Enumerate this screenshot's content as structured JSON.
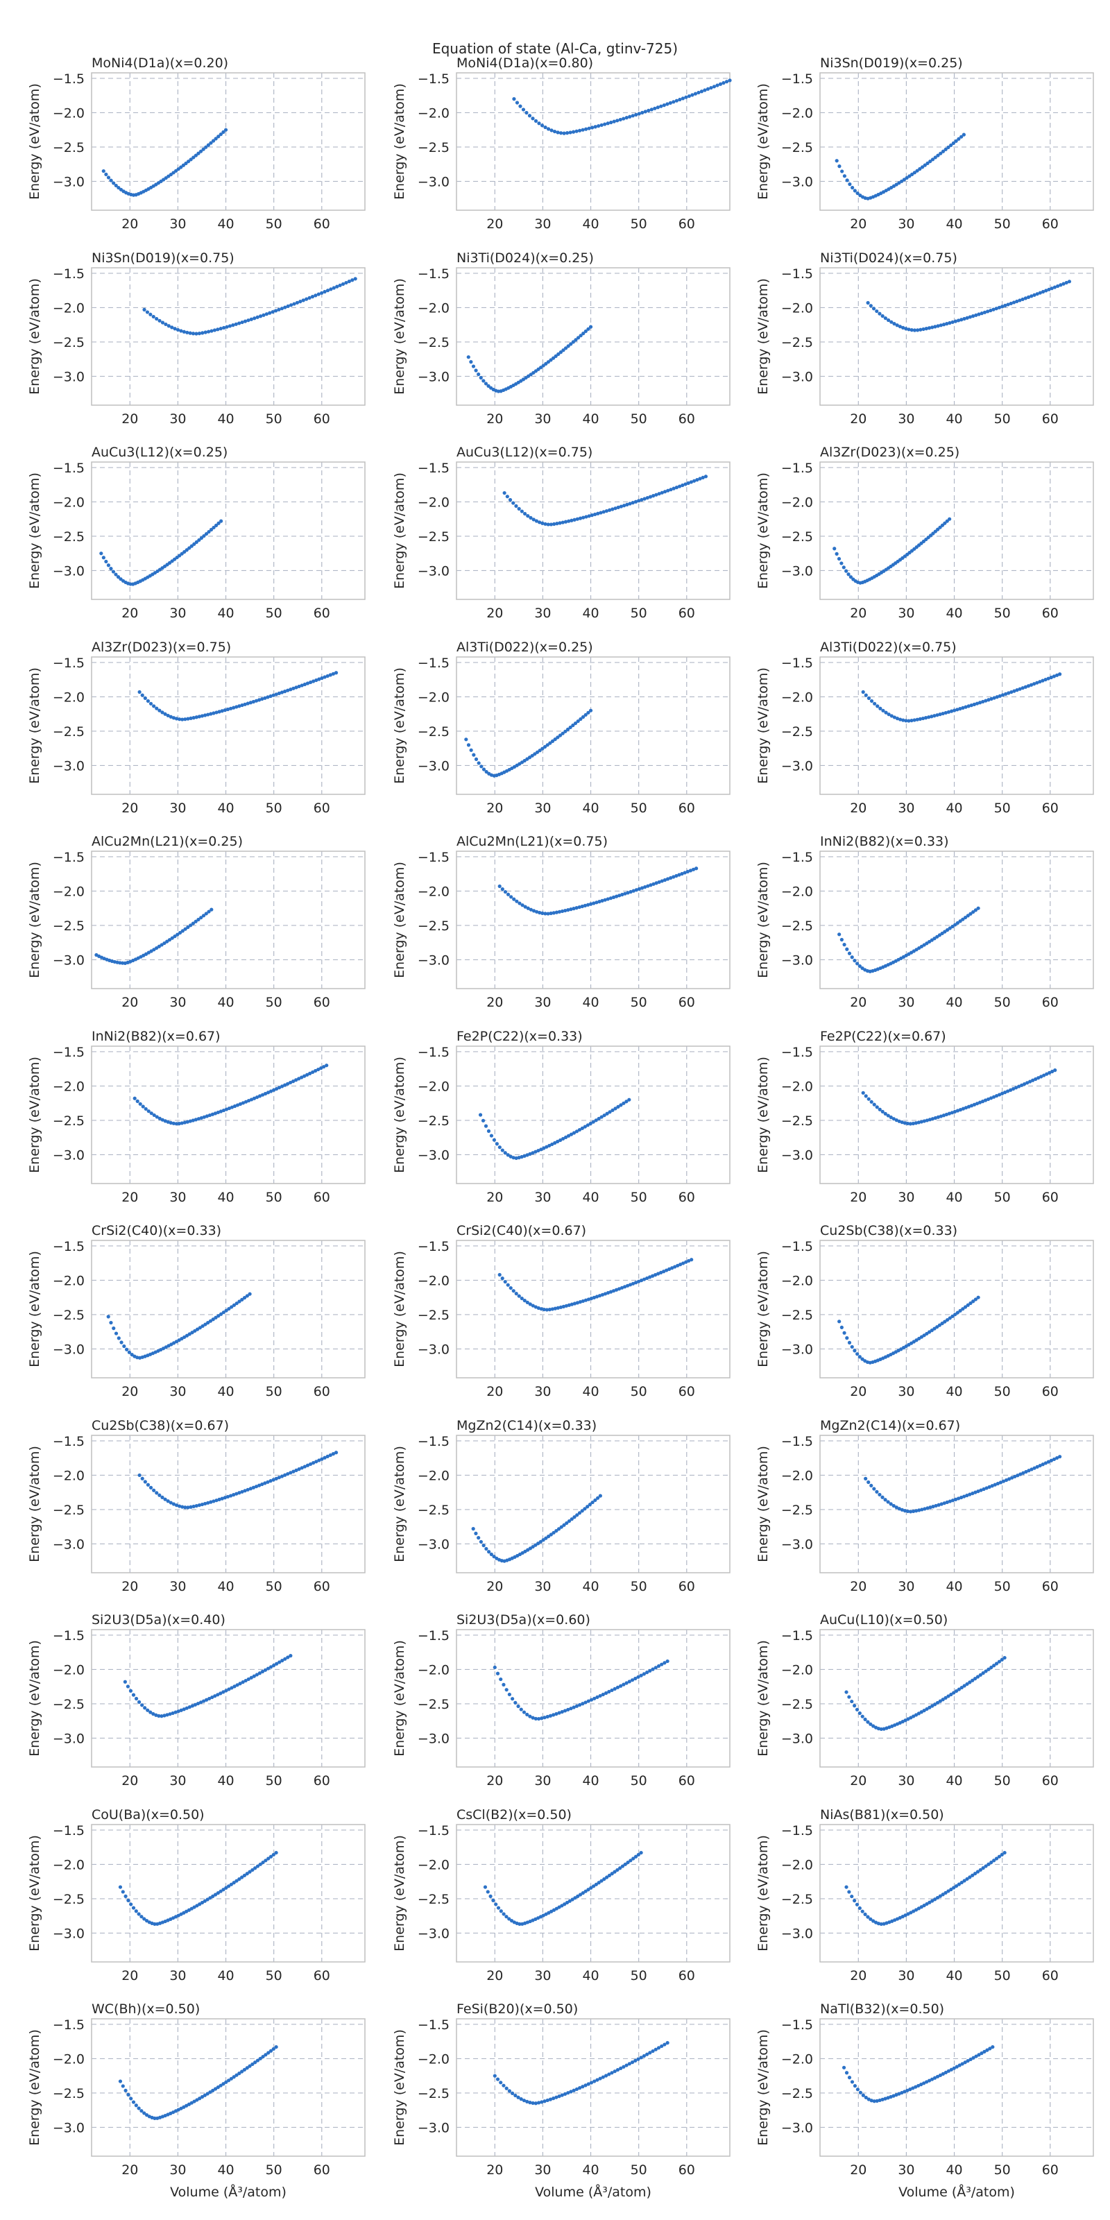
{
  "figure": {
    "suptitle": "Equation of state (Al-Ca, gtinv-725)",
    "xlabel": "Volume (Å³/atom)",
    "ylabel": "Energy (eV/atom)",
    "point_color": "#2c72c7",
    "grid_color": "#b0b7c6",
    "frame_color": "#bfbfbf"
  },
  "chart_data": {
    "type": "scatter",
    "xlim": [
      12,
      69
    ],
    "ylim": [
      -3.42,
      -1.42
    ],
    "xticks": [
      20,
      30,
      40,
      50,
      60
    ],
    "yticks": [
      -1.5,
      -2.0,
      -2.5,
      -3.0
    ],
    "grid": true,
    "panels": [
      {
        "title": "MoNi4(D1a)(x=0.20)",
        "v": [
          14.5,
          21.0,
          40.0
        ],
        "e": [
          -2.85,
          -3.2,
          -2.25
        ],
        "n": 50
      },
      {
        "title": "MoNi4(D1a)(x=0.80)",
        "v": [
          24.0,
          34.5,
          69.0
        ],
        "e": [
          -1.8,
          -2.3,
          -1.53
        ],
        "n": 70
      },
      {
        "title": "Ni3Sn(D019)(x=0.25)",
        "v": [
          15.5,
          22.0,
          42.0
        ],
        "e": [
          -2.7,
          -3.25,
          -2.32
        ],
        "n": 50
      },
      {
        "title": "Ni3Sn(D019)(x=0.75)",
        "v": [
          23.0,
          34.0,
          67.0
        ],
        "e": [
          -2.03,
          -2.38,
          -1.58
        ],
        "n": 70
      },
      {
        "title": "Ni3Ti(D024)(x=0.25)",
        "v": [
          14.5,
          21.0,
          40.0
        ],
        "e": [
          -2.72,
          -3.22,
          -2.28
        ],
        "n": 50
      },
      {
        "title": "Ni3Ti(D024)(x=0.75)",
        "v": [
          22.0,
          32.0,
          64.0
        ],
        "e": [
          -1.93,
          -2.33,
          -1.62
        ],
        "n": 70
      },
      {
        "title": "AuCu3(L12)(x=0.25)",
        "v": [
          14.0,
          20.5,
          39.0
        ],
        "e": [
          -2.75,
          -3.2,
          -2.28
        ],
        "n": 50
      },
      {
        "title": "AuCu3(L12)(x=0.75)",
        "v": [
          22.0,
          31.5,
          64.0
        ],
        "e": [
          -1.87,
          -2.33,
          -1.63
        ],
        "n": 70
      },
      {
        "title": "Al3Zr(D023)(x=0.25)",
        "v": [
          15.0,
          20.5,
          39.0
        ],
        "e": [
          -2.68,
          -3.18,
          -2.25
        ],
        "n": 50
      },
      {
        "title": "Al3Zr(D023)(x=0.75)",
        "v": [
          22.0,
          31.0,
          63.0
        ],
        "e": [
          -1.93,
          -2.33,
          -1.65
        ],
        "n": 70
      },
      {
        "title": "Al3Ti(D022)(x=0.25)",
        "v": [
          14.0,
          20.0,
          40.0
        ],
        "e": [
          -2.62,
          -3.15,
          -2.2
        ],
        "n": 50
      },
      {
        "title": "Al3Ti(D022)(x=0.75)",
        "v": [
          21.0,
          30.5,
          62.0
        ],
        "e": [
          -1.93,
          -2.35,
          -1.67
        ],
        "n": 70
      },
      {
        "title": "AlCu2Mn(L21)(x=0.25)",
        "v": [
          13.0,
          19.0,
          37.0
        ],
        "e": [
          -2.93,
          -3.05,
          -2.27
        ],
        "n": 45
      },
      {
        "title": "AlCu2Mn(L21)(x=0.75)",
        "v": [
          21.0,
          31.0,
          62.0
        ],
        "e": [
          -1.93,
          -2.33,
          -1.67
        ],
        "n": 70
      },
      {
        "title": "InNi2(B82)(x=0.33)",
        "v": [
          16.0,
          22.5,
          45.0
        ],
        "e": [
          -2.63,
          -3.17,
          -2.25
        ],
        "n": 55
      },
      {
        "title": "InNi2(B82)(x=0.67)",
        "v": [
          21.0,
          30.0,
          61.0
        ],
        "e": [
          -2.18,
          -2.55,
          -1.7
        ],
        "n": 70
      },
      {
        "title": "Fe2P(C22)(x=0.33)",
        "v": [
          17.0,
          24.5,
          48.0
        ],
        "e": [
          -2.42,
          -3.05,
          -2.2
        ],
        "n": 55
      },
      {
        "title": "Fe2P(C22)(x=0.67)",
        "v": [
          21.0,
          31.0,
          61.0
        ],
        "e": [
          -2.1,
          -2.55,
          -1.77
        ],
        "n": 70
      },
      {
        "title": "CrSi2(C40)(x=0.33)",
        "v": [
          15.5,
          22.0,
          45.0
        ],
        "e": [
          -2.53,
          -3.13,
          -2.2
        ],
        "n": 55
      },
      {
        "title": "CrSi2(C40)(x=0.67)",
        "v": [
          21.0,
          31.0,
          61.0
        ],
        "e": [
          -1.92,
          -2.43,
          -1.7
        ],
        "n": 70
      },
      {
        "title": "Cu2Sb(C38)(x=0.33)",
        "v": [
          16.0,
          22.5,
          45.0
        ],
        "e": [
          -2.6,
          -3.2,
          -2.25
        ],
        "n": 55
      },
      {
        "title": "Cu2Sb(C38)(x=0.67)",
        "v": [
          22.0,
          32.0,
          63.0
        ],
        "e": [
          -2.0,
          -2.47,
          -1.67
        ],
        "n": 70
      },
      {
        "title": "MgZn2(C14)(x=0.33)",
        "v": [
          15.5,
          22.0,
          42.0
        ],
        "e": [
          -2.78,
          -3.25,
          -2.3
        ],
        "n": 50
      },
      {
        "title": "MgZn2(C14)(x=0.67)",
        "v": [
          21.5,
          31.0,
          62.0
        ],
        "e": [
          -2.05,
          -2.53,
          -1.73
        ],
        "n": 70
      },
      {
        "title": "Si2U3(D5a)(x=0.40)",
        "v": [
          19.0,
          26.5,
          53.5
        ],
        "e": [
          -2.18,
          -2.68,
          -1.8
        ],
        "n": 60
      },
      {
        "title": "Si2U3(D5a)(x=0.60)",
        "v": [
          20.0,
          29.0,
          56.0
        ],
        "e": [
          -1.97,
          -2.72,
          -1.88
        ],
        "n": 60
      },
      {
        "title": "AuCu(L10)(x=0.50)",
        "v": [
          17.5,
          25.0,
          50.5
        ],
        "e": [
          -2.33,
          -2.87,
          -1.83
        ],
        "n": 60
      },
      {
        "title": "CoU(Ba)(x=0.50)",
        "v": [
          18.0,
          25.5,
          50.5
        ],
        "e": [
          -2.33,
          -2.87,
          -1.83
        ],
        "n": 60
      },
      {
        "title": "CsCl(B2)(x=0.50)",
        "v": [
          18.0,
          25.5,
          50.5
        ],
        "e": [
          -2.33,
          -2.87,
          -1.83
        ],
        "n": 60
      },
      {
        "title": "NiAs(B81)(x=0.50)",
        "v": [
          17.5,
          25.0,
          50.5
        ],
        "e": [
          -2.33,
          -2.87,
          -1.83
        ],
        "n": 60
      },
      {
        "title": "WC(Bh)(x=0.50)",
        "v": [
          18.0,
          25.5,
          50.5
        ],
        "e": [
          -2.33,
          -2.87,
          -1.83
        ],
        "n": 60
      },
      {
        "title": "FeSi(B20)(x=0.50)",
        "v": [
          20.0,
          28.5,
          56.0
        ],
        "e": [
          -2.25,
          -2.65,
          -1.77
        ],
        "n": 60
      },
      {
        "title": "NaTl(B32)(x=0.50)",
        "v": [
          17.0,
          23.5,
          48.0
        ],
        "e": [
          -2.13,
          -2.62,
          -1.83
        ],
        "n": 55
      }
    ]
  }
}
